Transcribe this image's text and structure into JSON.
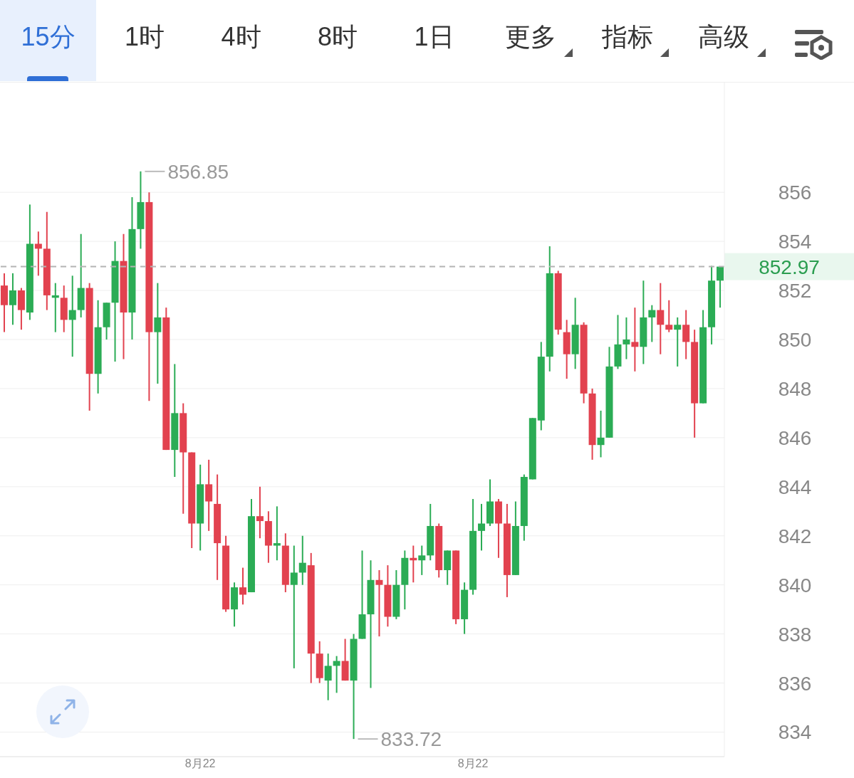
{
  "chart_data": {
    "type": "candlestick",
    "categories": [
      null,
      null,
      null,
      null,
      null,
      null,
      null,
      null,
      null,
      null,
      null,
      null,
      null,
      null,
      null,
      null,
      null,
      null,
      null,
      null,
      null,
      null,
      null,
      "8月22",
      null,
      null,
      null,
      null,
      null,
      null,
      null,
      null,
      null,
      null,
      null,
      null,
      null,
      null,
      null,
      null,
      null,
      null,
      null,
      null,
      null,
      null,
      null,
      null,
      null,
      null,
      null,
      null,
      null,
      null,
      null,
      "8月22",
      null,
      null,
      null,
      null,
      null,
      null,
      null,
      null,
      null,
      null,
      null,
      null,
      null,
      null,
      null,
      null,
      null,
      null,
      null,
      null,
      null,
      null,
      null,
      null,
      null,
      null,
      null,
      null,
      null
    ],
    "ohlc": [
      [
        852.2,
        852.7,
        850.3,
        851.4
      ],
      [
        851.4,
        852.7,
        850.6,
        852.0
      ],
      [
        852.0,
        852.1,
        850.4,
        851.2
      ],
      [
        851.1,
        855.5,
        850.8,
        853.9
      ],
      [
        853.9,
        854.4,
        852.6,
        853.7
      ],
      [
        853.7,
        855.2,
        851.2,
        851.8
      ],
      [
        851.7,
        852.3,
        850.3,
        851.8
      ],
      [
        851.7,
        852.2,
        850.3,
        850.8
      ],
      [
        850.8,
        852.6,
        849.3,
        851.2
      ],
      [
        851.2,
        854.3,
        850.9,
        852.1
      ],
      [
        852.1,
        852.3,
        847.1,
        848.6
      ],
      [
        848.6,
        851.6,
        847.8,
        850.5
      ],
      [
        850.5,
        851.5,
        850.0,
        851.5
      ],
      [
        851.5,
        854.0,
        849.1,
        853.2
      ],
      [
        853.2,
        854.3,
        849.2,
        851.1
      ],
      [
        851.1,
        855.8,
        850.0,
        854.5
      ],
      [
        854.5,
        856.85,
        853.7,
        855.6
      ],
      [
        855.6,
        856.0,
        847.5,
        850.3
      ],
      [
        850.3,
        852.3,
        848.2,
        850.9
      ],
      [
        850.9,
        851.3,
        845.5,
        845.5
      ],
      [
        845.5,
        849.0,
        844.4,
        847.0
      ],
      [
        847.0,
        847.4,
        842.9,
        845.4
      ],
      [
        845.4,
        845.4,
        841.5,
        842.5
      ],
      [
        842.5,
        844.9,
        841.4,
        844.1
      ],
      [
        844.1,
        845.1,
        842.2,
        843.4
      ],
      [
        843.3,
        844.5,
        840.2,
        841.7
      ],
      [
        841.6,
        842.0,
        838.9,
        839.0
      ],
      [
        839.0,
        840.1,
        838.3,
        839.9
      ],
      [
        839.9,
        840.7,
        839.2,
        839.6
      ],
      [
        839.7,
        843.5,
        839.7,
        842.8
      ],
      [
        842.8,
        844.0,
        841.9,
        842.6
      ],
      [
        842.6,
        843.0,
        840.9,
        841.6
      ],
      [
        841.6,
        843.2,
        841.0,
        841.7
      ],
      [
        841.6,
        842.1,
        839.7,
        840.0
      ],
      [
        840.0,
        841.6,
        836.6,
        840.5
      ],
      [
        840.5,
        842.0,
        840.0,
        840.9
      ],
      [
        840.8,
        841.3,
        836.0,
        837.2
      ],
      [
        837.2,
        837.7,
        836.0,
        836.2
      ],
      [
        836.1,
        837.2,
        835.3,
        836.7
      ],
      [
        836.7,
        837.1,
        835.6,
        836.9
      ],
      [
        836.9,
        837.8,
        836.1,
        836.1
      ],
      [
        836.1,
        838.0,
        833.72,
        837.8
      ],
      [
        837.8,
        841.4,
        837.8,
        838.8
      ],
      [
        838.8,
        841.0,
        835.8,
        840.2
      ],
      [
        840.2,
        840.6,
        837.9,
        840.0
      ],
      [
        840.0,
        840.8,
        838.3,
        838.7
      ],
      [
        838.7,
        840.6,
        838.6,
        840.0
      ],
      [
        840.0,
        841.4,
        839.0,
        841.1
      ],
      [
        841.1,
        841.6,
        840.1,
        841.0
      ],
      [
        841.0,
        841.6,
        840.4,
        841.2
      ],
      [
        841.2,
        843.3,
        841.0,
        842.4
      ],
      [
        842.4,
        842.5,
        840.3,
        840.6
      ],
      [
        840.6,
        841.4,
        840.0,
        841.4
      ],
      [
        841.4,
        841.4,
        838.4,
        838.6
      ],
      [
        838.6,
        840.1,
        838.0,
        839.8
      ],
      [
        839.8,
        843.5,
        839.6,
        842.2
      ],
      [
        842.2,
        843.3,
        841.4,
        842.5
      ],
      [
        842.5,
        844.3,
        842.4,
        843.4
      ],
      [
        843.4,
        843.5,
        841.1,
        842.5
      ],
      [
        842.5,
        843.3,
        839.5,
        840.4
      ],
      [
        840.4,
        843.4,
        840.4,
        842.4
      ],
      [
        842.4,
        844.5,
        841.8,
        844.4
      ],
      [
        844.3,
        846.8,
        844.3,
        846.8
      ],
      [
        846.7,
        849.9,
        846.3,
        849.3
      ],
      [
        849.3,
        853.8,
        848.7,
        852.7
      ],
      [
        852.7,
        852.8,
        850.2,
        850.4
      ],
      [
        850.3,
        850.8,
        848.4,
        849.4
      ],
      [
        849.4,
        851.7,
        848.8,
        850.6
      ],
      [
        850.6,
        850.7,
        847.4,
        847.8
      ],
      [
        847.8,
        848.0,
        845.1,
        845.7
      ],
      [
        845.7,
        847.1,
        845.2,
        846.0
      ],
      [
        846.0,
        849.7,
        846.0,
        848.9
      ],
      [
        848.9,
        851.0,
        848.8,
        849.8
      ],
      [
        849.8,
        850.9,
        849.2,
        850.0
      ],
      [
        849.9,
        851.3,
        848.7,
        849.7
      ],
      [
        849.7,
        852.4,
        849.0,
        850.9
      ],
      [
        850.9,
        851.4,
        849.9,
        851.2
      ],
      [
        851.2,
        852.3,
        849.4,
        850.6
      ],
      [
        850.6,
        851.6,
        850.3,
        850.4
      ],
      [
        850.4,
        850.9,
        848.9,
        850.6
      ],
      [
        850.6,
        851.2,
        849.2,
        849.9
      ],
      [
        849.9,
        850.4,
        846.0,
        847.4
      ],
      [
        847.4,
        851.2,
        847.4,
        850.5
      ],
      [
        850.5,
        853.0,
        849.8,
        852.4
      ],
      [
        852.4,
        852.97,
        851.3,
        852.97
      ]
    ],
    "colors": [
      "#e2424f",
      "#2bac55",
      "#e2424f",
      "#2bac55",
      "#e2424f",
      "#e2424f",
      "#2bac55",
      "#e2424f",
      "#2bac55",
      "#2bac55",
      "#e2424f",
      "#2bac55",
      "#2bac55",
      "#2bac55",
      "#e2424f",
      "#2bac55",
      "#2bac55",
      "#e2424f",
      "#2bac55",
      "#e2424f",
      "#2bac55",
      "#e2424f",
      "#e2424f",
      "#2bac55",
      "#e2424f",
      "#e2424f",
      "#e2424f",
      "#2bac55",
      "#e2424f",
      "#2bac55",
      "#e2424f",
      "#e2424f",
      "#2bac55",
      "#e2424f",
      "#2bac55",
      "#2bac55",
      "#e2424f",
      "#e2424f",
      "#2bac55",
      "#2bac55",
      "#e2424f",
      "#2bac55",
      "#2bac55",
      "#2bac55",
      "#e2424f",
      "#e2424f",
      "#2bac55",
      "#2bac55",
      "#e2424f",
      "#2bac55",
      "#2bac55",
      "#e2424f",
      "#2bac55",
      "#e2424f",
      "#2bac55",
      "#2bac55",
      "#2bac55",
      "#2bac55",
      "#e2424f",
      "#e2424f",
      "#2bac55",
      "#2bac55",
      "#2bac55",
      "#2bac55",
      "#2bac55",
      "#e2424f",
      "#e2424f",
      "#2bac55",
      "#e2424f",
      "#e2424f",
      "#2bac55",
      "#2bac55",
      "#2bac55",
      "#2bac55",
      "#e2424f",
      "#2bac55",
      "#2bac55",
      "#e2424f",
      "#e2424f",
      "#2bac55",
      "#e2424f",
      "#e2424f",
      "#2bac55",
      "#2bac55",
      "#2bac55"
    ],
    "ylim": [
      833,
      860.5
    ],
    "yticks": [
      834,
      836,
      838,
      840,
      842,
      844,
      846,
      848,
      850,
      852,
      854,
      856
    ],
    "grid": "y",
    "ref_lines": [
      {
        "axis": "y",
        "value": 852.97,
        "label": "852.97",
        "color": "#b4b4b4",
        "line_style": "dashed"
      }
    ],
    "annotations": [
      "15分",
      "1时",
      "4时",
      "8时",
      "1日",
      "更多",
      "指标",
      "高级",
      "856.85",
      "833.72"
    ]
  }
}
